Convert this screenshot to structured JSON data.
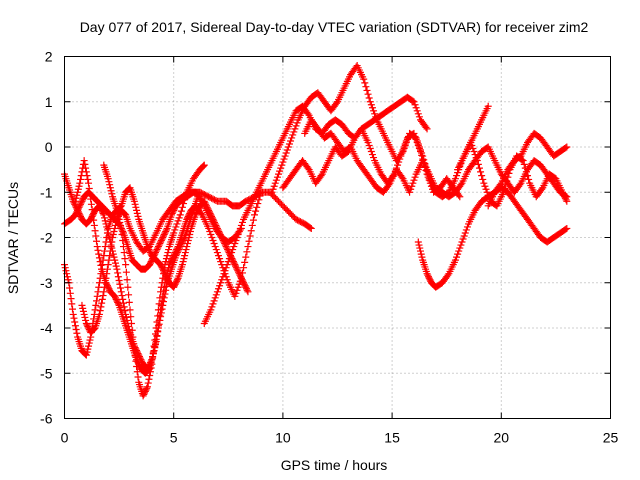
{
  "chart_data": {
    "type": "scatter",
    "title": "Day 077 of 2017, Sidereal Day-to-day VTEC variation (SDTVAR) for receiver zim2",
    "xlabel": "GPS time / hours",
    "ylabel": "SDTVAR / TECUs",
    "xlim": [
      0,
      25
    ],
    "ylim": [
      -6,
      2
    ],
    "xticks": [
      "0",
      "5",
      "10",
      "15",
      "20",
      "25"
    ],
    "yticks": [
      "2",
      "1",
      "0",
      "-1",
      "-2",
      "-3",
      "-4",
      "-5",
      "-6"
    ],
    "marker": "+",
    "grid": true,
    "legend": "none",
    "color": "#ff0000",
    "series": [
      {
        "x": [
          0.0,
          0.3,
          0.5,
          0.7,
          0.9,
          1.1,
          1.3,
          1.5,
          1.7,
          1.9,
          2.1,
          2.3,
          2.5,
          2.7,
          2.9,
          3.1,
          3.3,
          3.5,
          3.7,
          3.9,
          4.1,
          4.3,
          4.5,
          4.7,
          4.9,
          5.1,
          5.3,
          5.6,
          5.9,
          6.2,
          6.6,
          7.0,
          7.4,
          7.7,
          8.0,
          8.3,
          8.7,
          9.0,
          9.4,
          9.8,
          10.2,
          10.6,
          11.0,
          11.3
        ],
        "y": [
          -1.7,
          -1.6,
          -1.5,
          -1.3,
          -1.1,
          -1.0,
          -1.1,
          -1.2,
          -1.3,
          -1.4,
          -1.5,
          -1.6,
          -1.7,
          -1.9,
          -2.2,
          -2.5,
          -2.6,
          -2.7,
          -2.7,
          -2.6,
          -2.4,
          -2.2,
          -2.0,
          -1.8,
          -1.5,
          -1.3,
          -1.2,
          -1.1,
          -1.0,
          -1.0,
          -1.1,
          -1.2,
          -1.2,
          -1.3,
          -1.3,
          -1.2,
          -1.1,
          -1.0,
          -1.0,
          -1.2,
          -1.4,
          -1.6,
          -1.7,
          -1.8
        ]
      },
      {
        "x": [
          0.0,
          0.2,
          0.4,
          0.6,
          0.8,
          1.0,
          1.2,
          1.4,
          1.6,
          1.8,
          2.0,
          2.2,
          2.4,
          2.6,
          2.8,
          3.0,
          3.2,
          3.4,
          3.6,
          3.8,
          4.0,
          4.2,
          4.4,
          4.6,
          4.8,
          5.0,
          5.3,
          5.6,
          5.9,
          6.2,
          6.4
        ],
        "y": [
          -2.6,
          -3.0,
          -3.7,
          -4.2,
          -4.5,
          -4.6,
          -4.2,
          -3.6,
          -3.0,
          -2.4,
          -1.8,
          -1.5,
          -1.4,
          -1.8,
          -2.6,
          -3.6,
          -4.5,
          -5.2,
          -5.5,
          -5.3,
          -4.8,
          -4.0,
          -3.2,
          -2.6,
          -2.2,
          -1.9,
          -1.5,
          -1.0,
          -0.7,
          -0.5,
          -0.4
        ]
      },
      {
        "x": [
          0.0,
          0.2,
          0.4,
          0.6,
          0.8,
          1.0,
          1.2,
          1.4,
          1.6,
          1.8,
          2.0,
          2.2,
          2.4,
          2.6,
          2.8,
          3.0,
          3.2,
          3.4,
          3.6,
          3.8,
          4.0,
          4.2,
          4.4,
          4.6,
          4.8,
          5.0,
          5.2,
          5.4,
          5.6,
          5.8,
          6.0,
          6.3,
          6.6,
          6.9,
          7.2,
          7.5,
          7.8,
          8.1,
          8.4,
          8.7,
          9.0
        ],
        "y": [
          -0.6,
          -0.9,
          -1.2,
          -1.4,
          -1.6,
          -1.7,
          -1.6,
          -1.4,
          -1.3,
          -1.5,
          -1.9,
          -2.3,
          -2.7,
          -3.2,
          -3.7,
          -4.1,
          -4.4,
          -4.6,
          -4.8,
          -4.9,
          -4.7,
          -4.3,
          -3.6,
          -3.0,
          -2.6,
          -2.4,
          -2.2,
          -1.9,
          -1.6,
          -1.4,
          -1.3,
          -1.5,
          -1.8,
          -2.2,
          -2.6,
          -3.0,
          -3.3,
          -2.9,
          -2.2,
          -1.5,
          -1.0
        ]
      },
      {
        "x": [
          0.5,
          0.7,
          0.9,
          1.1,
          1.3,
          1.5,
          1.7,
          1.9,
          2.1,
          2.3,
          2.5,
          2.7,
          2.9,
          3.1,
          3.3,
          3.5,
          3.7,
          3.9,
          4.1,
          4.3,
          4.5,
          4.7,
          4.9,
          5.1,
          5.3,
          5.5,
          5.7,
          5.9,
          6.1
        ],
        "y": [
          -1.2,
          -0.8,
          -0.3,
          -0.8,
          -1.5,
          -2.2,
          -2.7,
          -3.0,
          -3.2,
          -3.3,
          -3.5,
          -3.8,
          -4.1,
          -4.4,
          -4.7,
          -4.9,
          -5.0,
          -4.9,
          -4.5,
          -4.0,
          -3.5,
          -3.0,
          -2.7,
          -2.4,
          -2.2,
          -2.0,
          -1.7,
          -1.4,
          -1.1
        ]
      },
      {
        "x": [
          0.8,
          1.0,
          1.2,
          1.4,
          1.6,
          1.8,
          2.0,
          2.2,
          2.4,
          2.6,
          2.8,
          3.0,
          3.3,
          3.6,
          3.9,
          4.2,
          4.5,
          4.8,
          5.1,
          5.4,
          5.7,
          6.0,
          6.3,
          6.6,
          6.9,
          7.2,
          7.5,
          7.8,
          8.1
        ],
        "y": [
          -3.5,
          -3.9,
          -4.1,
          -4.0,
          -3.7,
          -3.2,
          -2.6,
          -2.0,
          -1.6,
          -1.4,
          -1.5,
          -1.8,
          -2.1,
          -2.3,
          -2.2,
          -1.9,
          -1.6,
          -1.4,
          -1.2,
          -1.1,
          -1.0,
          -1.0,
          -1.2,
          -1.5,
          -1.8,
          -2.0,
          -2.1,
          -2.0,
          -1.8
        ]
      },
      {
        "x": [
          1.8,
          2.0,
          2.2,
          2.4,
          2.6,
          2.8,
          3.0,
          3.2,
          3.4,
          3.6,
          3.8,
          4.0,
          4.2,
          4.4,
          4.6,
          4.8,
          5.0,
          5.2,
          5.4,
          5.6,
          5.8,
          6.0,
          6.2,
          6.4,
          6.6,
          6.8,
          7.0,
          7.2,
          7.4,
          7.6,
          7.8,
          8.0,
          8.2,
          8.4
        ],
        "y": [
          -0.4,
          -0.7,
          -1.1,
          -1.4,
          -1.3,
          -1.0,
          -0.9,
          -1.2,
          -1.6,
          -1.9,
          -2.2,
          -2.4,
          -2.5,
          -2.6,
          -2.8,
          -3.0,
          -3.1,
          -2.9,
          -2.6,
          -2.2,
          -1.8,
          -1.5,
          -1.3,
          -1.2,
          -1.4,
          -1.6,
          -1.8,
          -2.0,
          -2.2,
          -2.4,
          -2.6,
          -2.8,
          -3.0,
          -3.2
        ]
      },
      {
        "x": [
          6.4,
          6.7,
          7.0,
          7.3,
          7.6,
          7.9,
          8.2,
          8.5,
          8.8,
          9.1,
          9.4,
          9.7,
          10.0,
          10.3,
          10.6,
          10.9,
          11.2,
          11.5,
          11.8,
          12.1,
          12.4,
          12.7,
          13.0,
          13.3,
          13.6,
          13.9,
          14.2,
          14.5,
          14.8,
          15.1,
          15.4,
          15.7,
          16.0,
          16.3,
          16.6
        ],
        "y": [
          -3.9,
          -3.6,
          -3.2,
          -2.8,
          -2.4,
          -2.0,
          -1.6,
          -1.3,
          -1.0,
          -0.7,
          -0.4,
          -0.1,
          0.2,
          0.5,
          0.8,
          0.9,
          0.7,
          0.4,
          0.3,
          0.5,
          0.6,
          0.5,
          0.3,
          0.2,
          0.4,
          0.5,
          0.6,
          0.7,
          0.8,
          0.9,
          1.0,
          1.1,
          1.0,
          0.6,
          0.4
        ]
      },
      {
        "x": [
          9.5,
          9.8,
          10.1,
          10.4,
          10.7,
          11.0,
          11.3,
          11.6,
          11.9,
          12.2,
          12.5,
          12.8,
          13.1,
          13.4,
          13.7,
          14.0,
          14.3,
          14.6,
          14.9,
          15.2,
          15.5,
          15.8,
          16.1,
          16.4,
          16.7,
          17.0,
          17.3,
          17.6,
          17.9,
          18.2,
          18.5,
          18.8,
          19.1,
          19.4
        ],
        "y": [
          -1.0,
          -0.6,
          -0.2,
          0.2,
          0.6,
          0.9,
          1.1,
          1.2,
          1.0,
          0.8,
          1.0,
          1.3,
          1.6,
          1.8,
          1.5,
          1.0,
          0.6,
          0.3,
          0.0,
          -0.3,
          -0.1,
          0.3,
          0.2,
          -0.2,
          -0.7,
          -1.0,
          -1.1,
          -1.0,
          -0.7,
          -0.3,
          0.0,
          0.3,
          0.6,
          0.9
        ]
      },
      {
        "x": [
          10.0,
          10.3,
          10.6,
          10.9,
          11.2,
          11.5,
          11.8,
          12.1,
          12.4,
          12.7,
          13.0,
          13.3,
          13.6,
          13.9,
          14.2,
          14.5,
          14.8,
          15.1,
          15.4,
          15.7,
          16.0,
          16.3,
          16.6,
          16.9,
          17.2,
          17.5,
          17.8,
          18.1
        ],
        "y": [
          -0.9,
          -0.7,
          -0.5,
          -0.3,
          -0.5,
          -0.8,
          -0.6,
          -0.3,
          0.0,
          -0.2,
          -0.1,
          0.2,
          0.4,
          0.1,
          -0.3,
          -0.6,
          -0.8,
          -0.6,
          -0.2,
          0.2,
          0.3,
          -0.1,
          -0.6,
          -1.0,
          -0.9,
          -0.7,
          -0.9,
          -1.1
        ]
      },
      {
        "x": [
          11.0,
          11.3,
          11.6,
          11.9,
          12.2,
          12.5,
          12.8,
          13.1,
          13.4,
          13.7,
          14.0,
          14.3,
          14.6,
          14.9,
          15.2,
          15.5,
          15.8,
          16.1,
          16.4,
          16.7,
          17.0,
          17.3,
          17.6,
          17.9,
          18.2,
          18.5,
          18.8,
          19.1,
          19.4,
          19.7,
          20.0,
          20.3,
          20.6,
          20.9,
          21.2,
          21.5,
          21.8,
          22.1,
          22.4,
          22.7,
          23.0
        ],
        "y": [
          0.3,
          0.6,
          0.4,
          0.2,
          0.3,
          0.1,
          -0.1,
          0.0,
          -0.3,
          -0.5,
          -0.7,
          -0.9,
          -1.0,
          -0.8,
          -0.5,
          -0.7,
          -1.0,
          -0.6,
          -0.3,
          -0.6,
          -0.9,
          -1.0,
          -1.1,
          -1.0,
          -0.8,
          -0.5,
          -0.3,
          -0.1,
          0.0,
          -0.3,
          -0.6,
          -0.8,
          -1.0,
          -0.8,
          -0.5,
          -0.3,
          -0.4,
          -0.6,
          -0.8,
          -1.0,
          -1.1
        ]
      },
      {
        "x": [
          16.2,
          16.4,
          16.6,
          16.8,
          17.0,
          17.3,
          17.6,
          17.9,
          18.2,
          18.5,
          18.8,
          19.1,
          19.4,
          19.7,
          20.0,
          20.3,
          20.6,
          20.9,
          21.2,
          21.5,
          21.8,
          22.1,
          22.4,
          22.7,
          23.0
        ],
        "y": [
          -2.1,
          -2.5,
          -2.8,
          -3.0,
          -3.1,
          -3.0,
          -2.8,
          -2.5,
          -2.1,
          -1.7,
          -1.4,
          -1.2,
          -1.1,
          -1.0,
          -0.9,
          -1.0,
          -1.2,
          -1.4,
          -1.6,
          -1.8,
          -2.0,
          -2.1,
          -2.0,
          -1.9,
          -1.8
        ]
      },
      {
        "x": [
          18.0,
          18.3,
          18.6,
          18.9,
          19.2,
          19.5,
          19.8,
          20.1,
          20.4,
          20.7,
          21.0,
          21.3,
          21.6,
          21.9,
          22.2,
          22.5,
          22.8,
          23.0
        ],
        "y": [
          -0.5,
          -0.2,
          0.1,
          -0.3,
          -0.8,
          -1.2,
          -1.3,
          -1.0,
          -0.5,
          -0.2,
          -0.3,
          -0.8,
          -1.1,
          -0.9,
          -0.6,
          -0.7,
          -1.0,
          -1.2
        ]
      },
      {
        "x": [
          19.4,
          19.7,
          20.0,
          20.3,
          20.6,
          20.9,
          21.2,
          21.5,
          21.8,
          22.1,
          22.4,
          22.7,
          23.0
        ],
        "y": [
          -1.3,
          -1.0,
          -0.8,
          -0.5,
          -0.3,
          -0.2,
          0.1,
          0.3,
          0.2,
          0.0,
          -0.2,
          -0.1,
          0.0
        ]
      }
    ]
  }
}
